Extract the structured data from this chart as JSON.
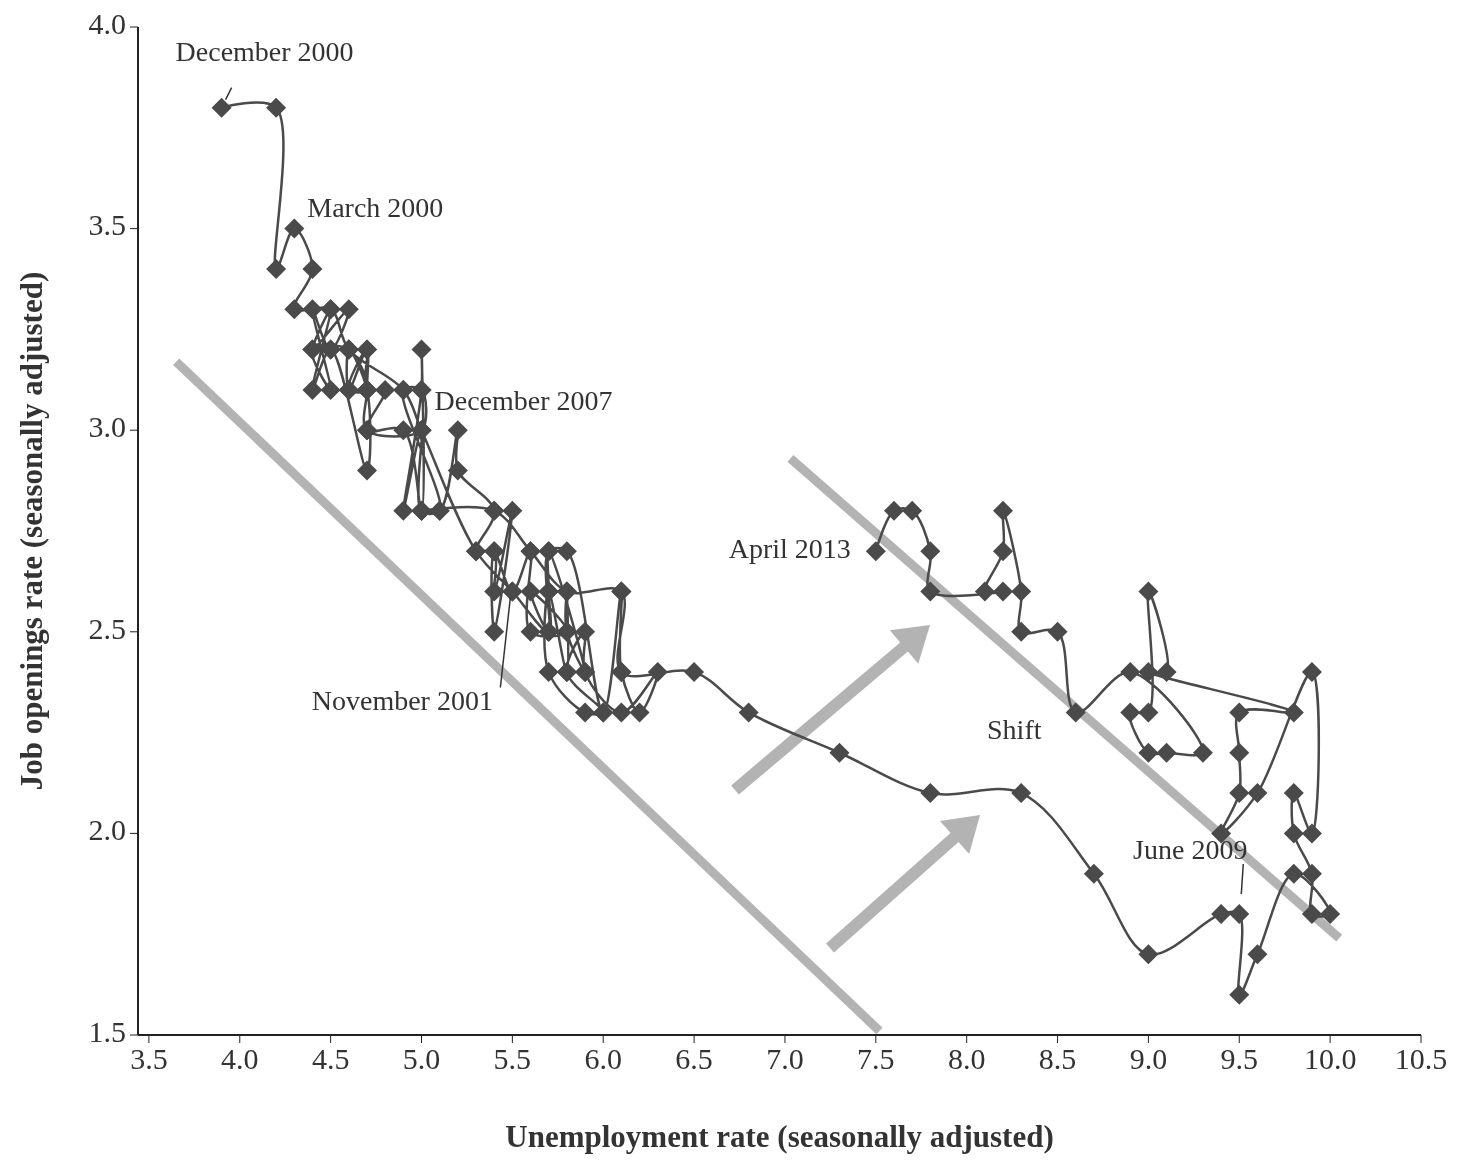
{
  "chart_data": {
    "type": "line",
    "xlabel": "Unemployment rate (seasonally adjusted)",
    "ylabel": "Job openings rate (seasonally adjusted)",
    "xlim": [
      3.44,
      10.5
    ],
    "ylim": [
      1.5,
      4.0
    ],
    "xticks": [
      {
        "value": 3.5,
        "label": "3.5"
      },
      {
        "value": 4,
        "label": "4.0"
      },
      {
        "value": 4.5,
        "label": "4.5"
      },
      {
        "value": 5,
        "label": "5.0"
      },
      {
        "value": 5.5,
        "label": "5.5"
      },
      {
        "value": 6,
        "label": "6.0"
      },
      {
        "value": 6.5,
        "label": "6.5"
      },
      {
        "value": 7,
        "label": "7.0"
      },
      {
        "value": 7.5,
        "label": "7.5"
      },
      {
        "value": 8,
        "label": "8.0"
      },
      {
        "value": 8.5,
        "label": "8.5"
      },
      {
        "value": 9,
        "label": "9.0"
      },
      {
        "value": 9.5,
        "label": "9.5"
      },
      {
        "value": 10,
        "label": "10.0"
      },
      {
        "value": 10.5,
        "label": "10.5"
      }
    ],
    "yticks": [
      {
        "value": 1.5,
        "label": "1.5"
      },
      {
        "value": 2,
        "label": "2.0"
      },
      {
        "value": 2.5,
        "label": "2.5"
      },
      {
        "value": 3,
        "label": "3.0"
      },
      {
        "value": 3.5,
        "label": "3.5"
      },
      {
        "value": 4,
        "label": "4.0"
      }
    ],
    "grid": false,
    "series": [
      {
        "color": "#4a4a4a",
        "marker": "diamond",
        "x": [
          3.9,
          4.2,
          4.2,
          4.3,
          4.4,
          4.3,
          4.5,
          4.6,
          4.9,
          5.0,
          5.3,
          5.5,
          5.7,
          5.7,
          5.7,
          5.9,
          5.8,
          5.8,
          5.8,
          5.7,
          5.7,
          5.9,
          6.0,
          5.8,
          5.9,
          5.9,
          6.1,
          6.3,
          6.2,
          6.1,
          6.1,
          6.0,
          5.8,
          5.7,
          5.7,
          5.6,
          5.8,
          5.6,
          5.6,
          5.5,
          5.4,
          5.4,
          5.5,
          5.4,
          5.4,
          5.3,
          5.4,
          5.2,
          5.2,
          5.1,
          5.0,
          5.0,
          4.9,
          5.0,
          5.0,
          5.0,
          4.9,
          4.7,
          4.8,
          4.7,
          4.7,
          4.6,
          4.6,
          4.7,
          4.7,
          4.5,
          4.4,
          4.5,
          4.4,
          4.6,
          4.5,
          4.4,
          4.5,
          4.4,
          4.6,
          4.7,
          4.6,
          4.7,
          4.7,
          4.7,
          5.0,
          5.0,
          4.9,
          5.1,
          5.0,
          5.4,
          5.6,
          5.8,
          6.1,
          6.1,
          6.5,
          6.8,
          7.3,
          7.8,
          8.3,
          8.7,
          9.0,
          9.4,
          9.5,
          9.5,
          9.6,
          9.8,
          10.0,
          9.9,
          9.9,
          9.8,
          9.8,
          9.9,
          9.9,
          9.6,
          9.4,
          9.5,
          9.5,
          9.5,
          9.8,
          9.0,
          9.1,
          9.0,
          9.0,
          8.9,
          9.0,
          9.1,
          9.3,
          8.9,
          8.6,
          8.5,
          8.3,
          8.3,
          8.2,
          8.2,
          8.1,
          8.2,
          7.8,
          7.8,
          7.7,
          7.6,
          7.5
        ],
        "values": [
          3.8,
          3.8,
          3.4,
          3.5,
          3.4,
          3.3,
          3.3,
          3.2,
          3.1,
          3.0,
          2.7,
          2.6,
          2.5,
          2.6,
          2.7,
          2.4,
          2.5,
          2.6,
          2.4,
          2.6,
          2.4,
          2.3,
          2.3,
          2.4,
          2.5,
          2.4,
          2.3,
          2.4,
          2.3,
          2.4,
          2.6,
          2.3,
          2.7,
          2.7,
          2.5,
          2.6,
          2.5,
          2.5,
          2.7,
          2.6,
          2.7,
          2.5,
          2.8,
          2.6,
          2.7,
          2.7,
          2.8,
          2.9,
          3.0,
          2.8,
          2.8,
          3.0,
          2.8,
          3.1,
          3.2,
          2.8,
          3.0,
          3.0,
          3.1,
          3.1,
          3.2,
          3.1,
          3.2,
          3.1,
          2.9,
          3.2,
          3.1,
          3.3,
          3.2,
          3.3,
          3.2,
          3.3,
          3.1,
          3.2,
          3.2,
          3.1,
          3.1,
          3.2,
          3.1,
          3.0,
          3.0,
          3.1,
          3.1,
          2.8,
          2.8,
          2.8,
          2.7,
          2.6,
          2.6,
          2.4,
          2.4,
          2.3,
          2.2,
          2.1,
          2.1,
          1.9,
          1.7,
          1.8,
          1.8,
          1.6,
          1.7,
          1.9,
          1.8,
          1.8,
          1.9,
          2.0,
          2.1,
          2.0,
          2.4,
          2.1,
          2.0,
          2.1,
          2.2,
          2.3,
          2.3,
          2.4,
          2.4,
          2.6,
          2.3,
          2.3,
          2.2,
          2.2,
          2.2,
          2.4,
          2.3,
          2.5,
          2.5,
          2.6,
          2.8,
          2.7,
          2.6,
          2.6,
          2.6,
          2.7,
          2.8,
          2.8,
          2.7
        ]
      },
      {
        "color": "#b3b3b3",
        "marker": "none",
        "x": [
          3.65,
          7.52
        ],
        "values": [
          3.17,
          1.51
        ]
      },
      {
        "color": "#b3b3b3",
        "marker": "none",
        "x": [
          7.03,
          10.05
        ],
        "values": [
          2.93,
          1.74
        ]
      }
    ],
    "annotations": [
      {
        "text": "December 2000",
        "x": 3.9,
        "y": 3.8
      },
      {
        "text": "March 2000",
        "x": 4.3,
        "y": 3.5
      },
      {
        "text": "December 2007",
        "x": 5.0,
        "y": 3.0
      },
      {
        "text": "November 2001",
        "x": 5.5,
        "y": 2.6
      },
      {
        "text": "April 2013",
        "x": 7.5,
        "y": 2.7
      },
      {
        "text": "June 2009",
        "x": 9.5,
        "y": 1.8
      },
      "Shift"
    ]
  }
}
